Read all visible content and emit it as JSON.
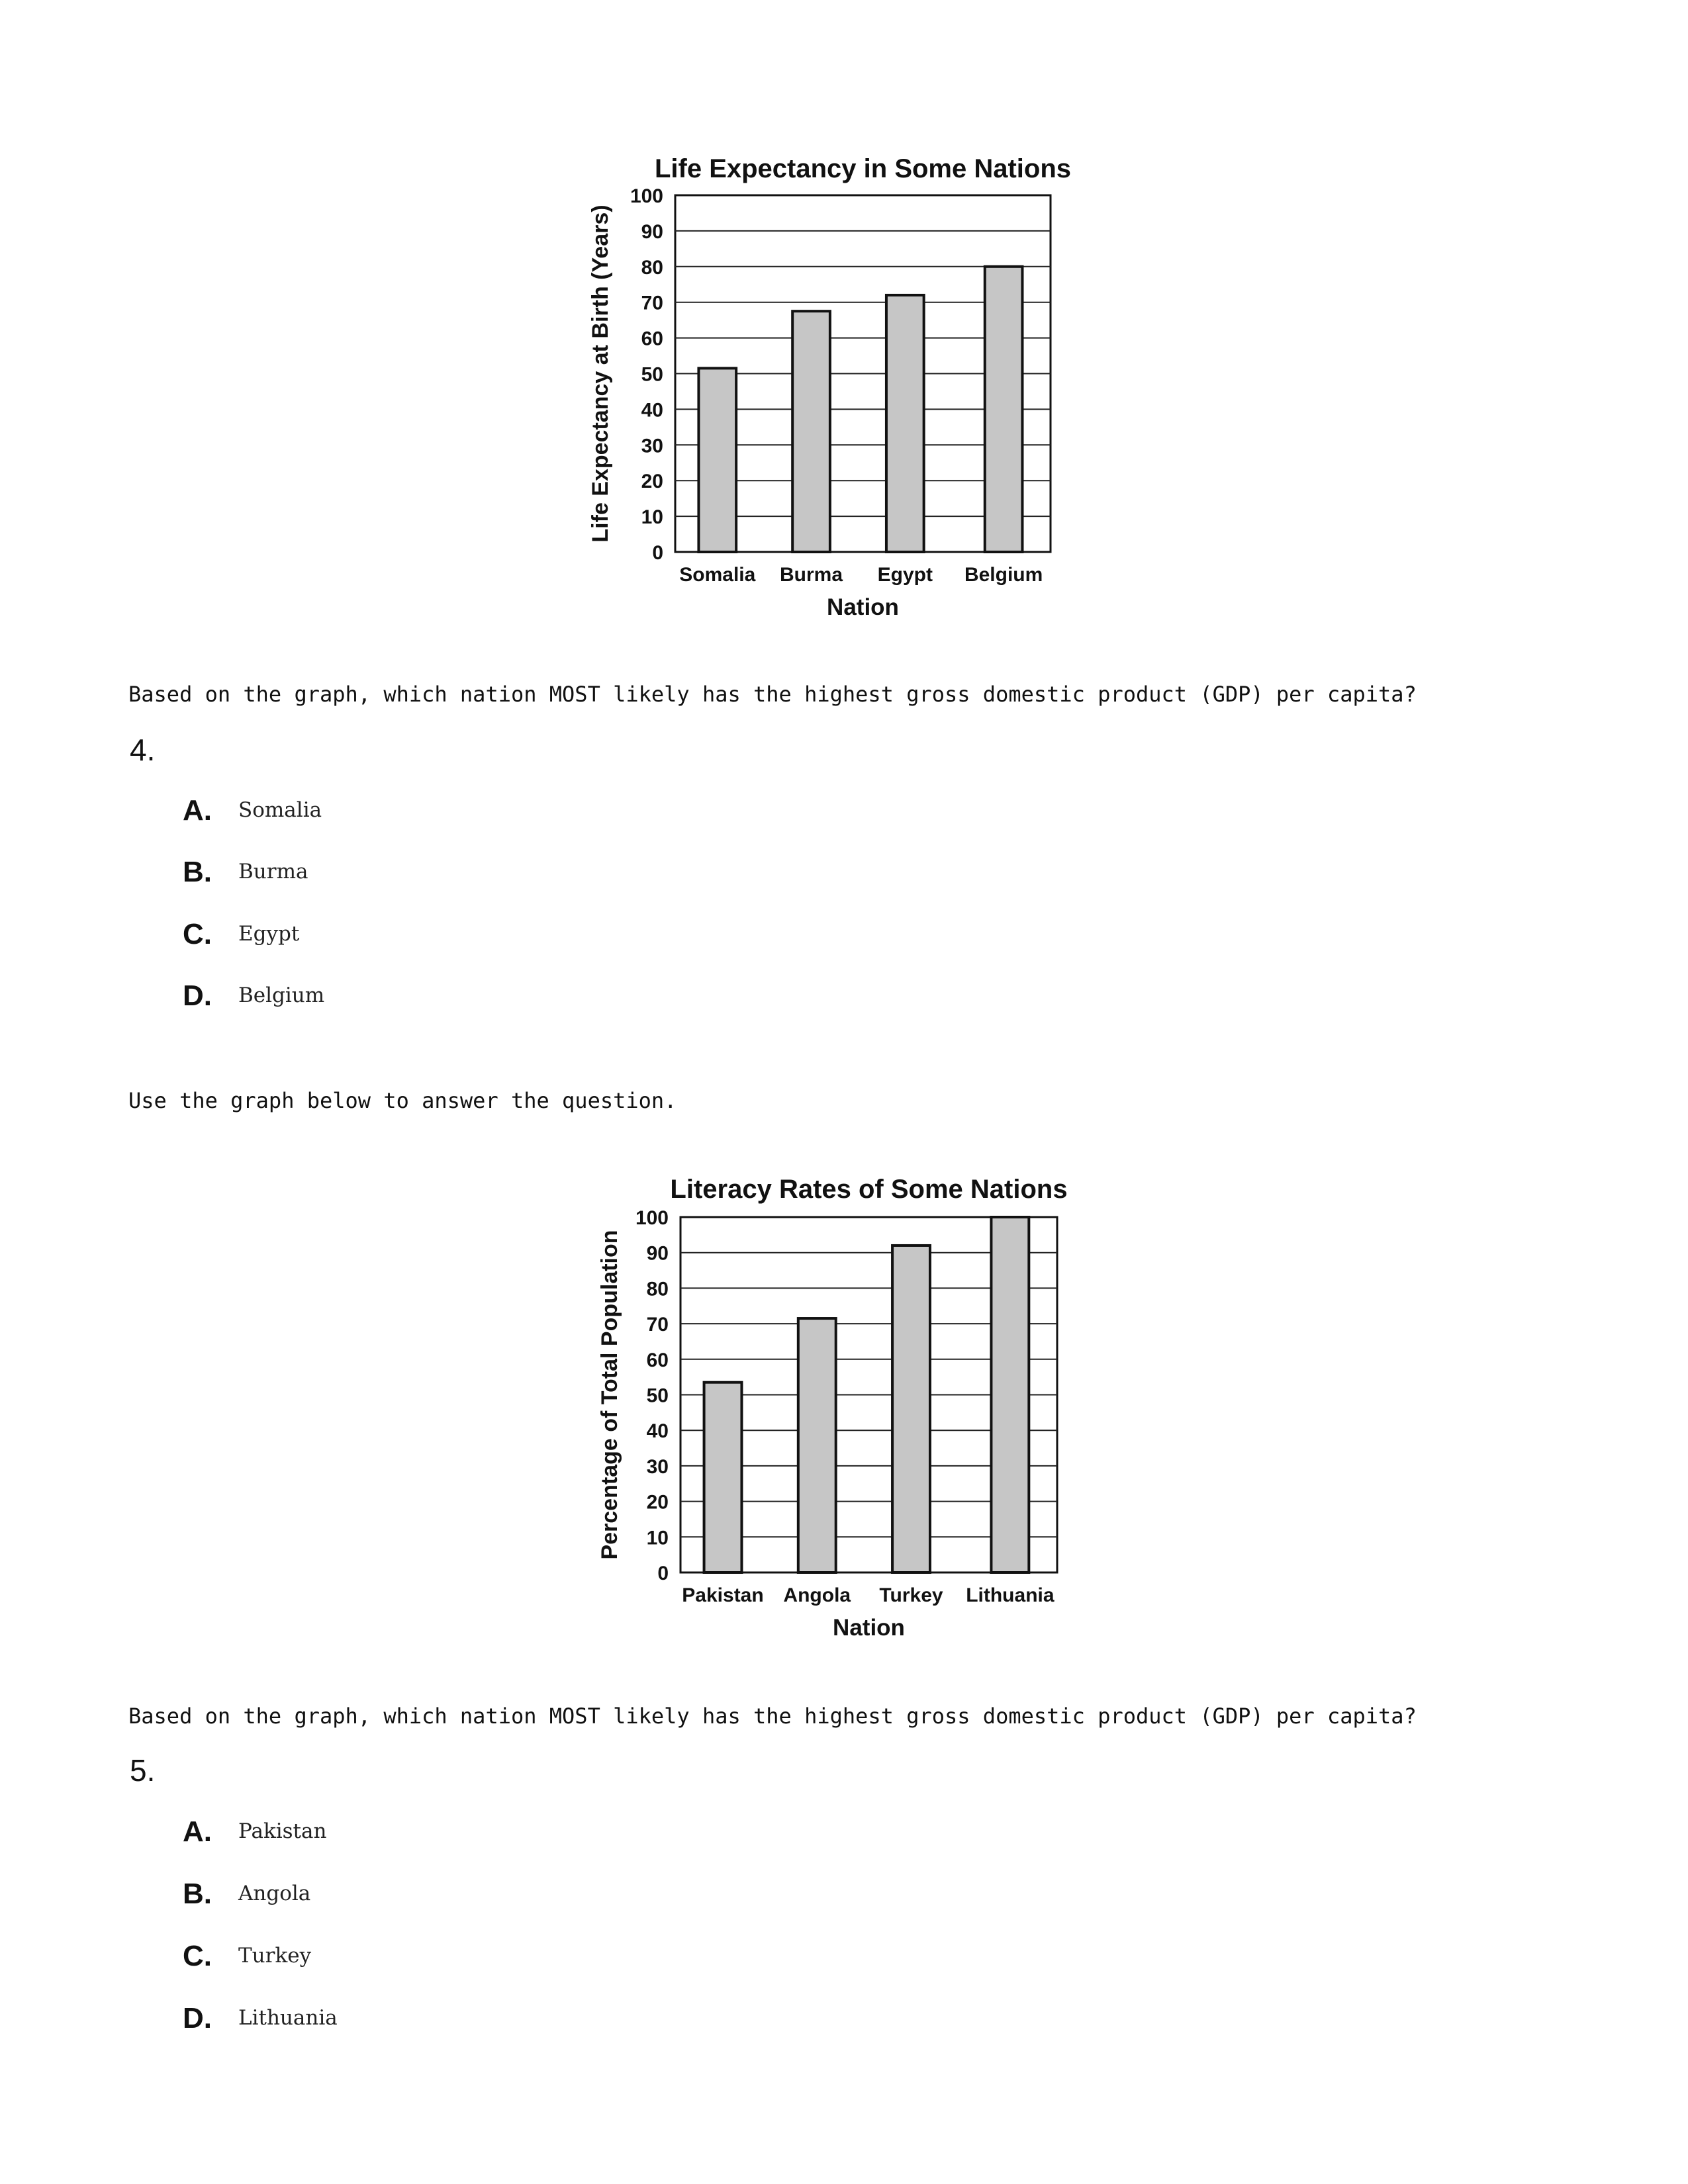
{
  "charts_intro": "Use the graph below to answer the question.",
  "chart_data": [
    {
      "type": "bar",
      "title": "Life Expectancy in Some Nations",
      "xlabel": "Nation",
      "ylabel": "Life Expectancy at Birth (Years)",
      "categories": [
        "Somalia",
        "Burma",
        "Egypt",
        "Belgium"
      ],
      "values": [
        51.5,
        67.5,
        72,
        80
      ],
      "ylim": [
        0,
        100
      ],
      "yticks": [
        "0",
        "10",
        "20",
        "30",
        "40",
        "50",
        "60",
        "70",
        "80",
        "90",
        "100"
      ],
      "grid": true,
      "bar_color": "#c6c6c6"
    },
    {
      "type": "bar",
      "title": "Literacy Rates of Some Nations",
      "xlabel": "Nation",
      "ylabel": "Percentage of Total Population",
      "categories": [
        "Pakistan",
        "Angola",
        "Turkey",
        "Lithuania"
      ],
      "values": [
        53.5,
        71.5,
        92,
        100
      ],
      "ylim": [
        0,
        100
      ],
      "yticks": [
        "0",
        "10",
        "20",
        "30",
        "40",
        "50",
        "60",
        "70",
        "80",
        "90",
        "100"
      ],
      "grid": true,
      "bar_color": "#c6c6c6"
    }
  ],
  "questions": [
    {
      "number": "4.",
      "text": "Based on the graph, which nation MOST likely has the highest gross domestic product (GDP) per capita?",
      "options": [
        {
          "letter": "A.",
          "text": "Somalia"
        },
        {
          "letter": "B.",
          "text": "Burma"
        },
        {
          "letter": "C.",
          "text": "Egypt"
        },
        {
          "letter": "D.",
          "text": "Belgium"
        }
      ]
    },
    {
      "number": "5.",
      "text": "Based on the graph, which nation MOST likely has the highest gross domestic product (GDP) per capita?",
      "options": [
        {
          "letter": "A.",
          "text": "Pakistan"
        },
        {
          "letter": "B.",
          "text": "Angola"
        },
        {
          "letter": "C.",
          "text": "Turkey"
        },
        {
          "letter": "D.",
          "text": "Lithuania"
        }
      ]
    }
  ]
}
